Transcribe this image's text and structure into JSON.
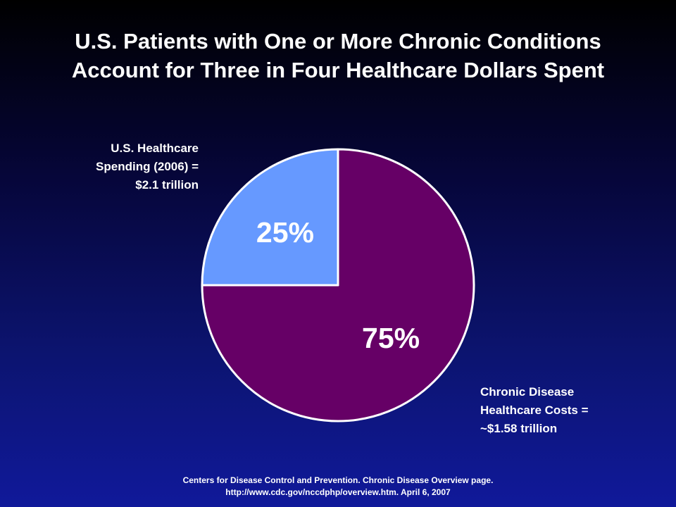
{
  "title": {
    "line1": "U.S. Patients with One or More Chronic Conditions",
    "line2": "Account for Three in Four Healthcare Dollars Spent"
  },
  "labels": {
    "left": {
      "line1": "U.S. Healthcare",
      "line2": "Spending (2006) =",
      "line3": "$2.1 trillion"
    },
    "right": {
      "line1": "Chronic Disease",
      "line2": "Healthcare Costs =",
      "line3": "~$1.58 trillion"
    }
  },
  "source": {
    "line1": "Centers for Disease Control and Prevention. Chronic Disease Overview page.",
    "line2": "http://www.cdc.gov/nccdphp/overview.htm.  April 6, 2007"
  },
  "chart_data": {
    "type": "pie",
    "categories": [
      "",
      ""
    ],
    "values": [
      75,
      25
    ],
    "data_labels": [
      "75%",
      "25%"
    ],
    "colors": [
      "#660066",
      "#6699ff"
    ],
    "start_angle_deg": 0,
    "direction": "clockwise",
    "legend": "none"
  }
}
